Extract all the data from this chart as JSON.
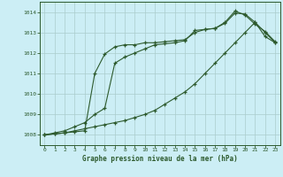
{
  "title": "Graphe pression niveau de la mer (hPa)",
  "background_color": "#cceef5",
  "grid_color": "#aacccc",
  "line_color": "#2d5a2d",
  "xlim": [
    -0.5,
    23.5
  ],
  "ylim": [
    1007.5,
    1014.5
  ],
  "xticks": [
    0,
    1,
    2,
    3,
    4,
    5,
    6,
    7,
    8,
    9,
    10,
    11,
    12,
    13,
    14,
    15,
    16,
    17,
    18,
    19,
    20,
    21,
    22,
    23
  ],
  "yticks": [
    1008,
    1009,
    1010,
    1011,
    1012,
    1013,
    1014
  ],
  "line1_x": [
    0,
    1,
    2,
    3,
    4,
    5,
    6,
    7,
    8,
    9,
    10,
    11,
    12,
    13,
    14,
    15,
    16,
    17,
    18,
    19,
    20,
    21,
    22,
    23
  ],
  "line1_y": [
    1008.0,
    1008.05,
    1008.1,
    1008.15,
    1008.2,
    1011.0,
    1011.95,
    1012.3,
    1012.4,
    1012.4,
    1012.5,
    1012.5,
    1012.55,
    1012.6,
    1012.65,
    1013.0,
    1013.15,
    1013.2,
    1013.5,
    1014.05,
    1013.85,
    1013.4,
    1013.05,
    1012.55
  ],
  "line2_x": [
    0,
    1,
    2,
    3,
    4,
    5,
    6,
    7,
    8,
    9,
    10,
    11,
    12,
    13,
    14,
    15,
    16,
    17,
    18,
    19,
    20,
    21,
    22,
    23
  ],
  "line2_y": [
    1008.0,
    1008.1,
    1008.2,
    1008.4,
    1008.6,
    1009.0,
    1009.3,
    1011.5,
    1011.8,
    1012.0,
    1012.2,
    1012.4,
    1012.45,
    1012.5,
    1012.6,
    1013.1,
    1013.15,
    1013.2,
    1013.45,
    1013.95,
    1013.9,
    1013.5,
    1013.0,
    1012.5
  ],
  "line3_x": [
    0,
    1,
    2,
    3,
    4,
    5,
    6,
    7,
    8,
    9,
    10,
    11,
    12,
    13,
    14,
    15,
    16,
    17,
    18,
    19,
    20,
    21,
    22,
    23
  ],
  "line3_y": [
    1008.0,
    1008.05,
    1008.1,
    1008.2,
    1008.3,
    1008.4,
    1008.5,
    1008.6,
    1008.7,
    1008.85,
    1009.0,
    1009.2,
    1009.5,
    1009.8,
    1010.1,
    1010.5,
    1011.0,
    1011.5,
    1012.0,
    1012.5,
    1013.0,
    1013.5,
    1012.8,
    1012.5
  ]
}
